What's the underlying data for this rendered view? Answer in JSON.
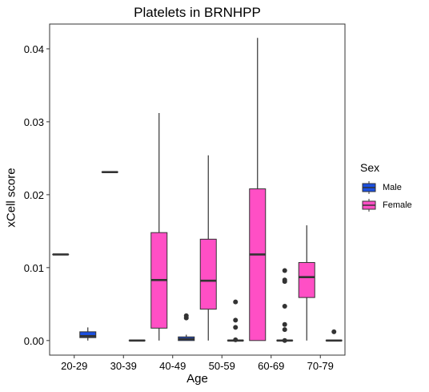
{
  "chart_data": {
    "type": "box",
    "title": "Platelets in BRNHPP",
    "xlabel": "Age",
    "ylabel": "xCell score",
    "categories": [
      "20-29",
      "30-39",
      "40-49",
      "50-59",
      "60-69",
      "70-79"
    ],
    "ylim": [
      -0.002,
      0.0434
    ],
    "yticks": [
      0.0,
      0.01,
      0.02,
      0.03,
      0.04
    ],
    "ytick_labels": [
      "0.00",
      "0.01",
      "0.02",
      "0.03",
      "0.04"
    ],
    "grid": false,
    "legend": {
      "title": "Sex",
      "placement": "right",
      "entries": [
        "Male",
        "Female"
      ]
    },
    "series": [
      {
        "name": "Female",
        "color": "#FF4FC5",
        "boxes": [
          {
            "category": "20-29",
            "min": 0.0118,
            "q1": 0.0118,
            "median": 0.0118,
            "q3": 0.0118,
            "max": 0.0118,
            "outliers": []
          },
          {
            "category": "30-39",
            "min": 0.0231,
            "q1": 0.0231,
            "median": 0.0231,
            "q3": 0.0231,
            "max": 0.0231,
            "outliers": []
          },
          {
            "category": "40-49",
            "min": 0.0,
            "q1": 0.0017,
            "median": 0.0083,
            "q3": 0.0148,
            "max": 0.0312,
            "outliers": []
          },
          {
            "category": "50-59",
            "min": 0.0,
            "q1": 0.0043,
            "median": 0.0082,
            "q3": 0.0139,
            "max": 0.0254,
            "outliers": []
          },
          {
            "category": "60-69",
            "min": 0.0,
            "q1": 0.0,
            "median": 0.0118,
            "q3": 0.0208,
            "max": 0.0415,
            "outliers": []
          },
          {
            "category": "70-79",
            "min": 0.0,
            "q1": 0.0059,
            "median": 0.0087,
            "q3": 0.0107,
            "max": 0.0158,
            "outliers": []
          }
        ]
      },
      {
        "name": "Male",
        "color": "#1B4FE0",
        "boxes": [
          {
            "category": "20-29",
            "min": 0.0,
            "q1": 0.0004,
            "median": 0.0006,
            "q3": 0.0012,
            "max": 0.0018,
            "outliers": []
          },
          {
            "category": "30-39",
            "min": 0.0,
            "q1": 0.0,
            "median": 0.0,
            "q3": 0.0,
            "max": 0.0,
            "outliers": []
          },
          {
            "category": "40-49",
            "min": 0.0,
            "q1": 0.0,
            "median": 0.0002,
            "q3": 0.0005,
            "max": 0.0008,
            "outliers": [
              0.0031,
              0.0034
            ]
          },
          {
            "category": "50-59",
            "min": 0.0,
            "q1": 0.0,
            "median": 0.0,
            "q3": 0.0,
            "max": 0.0,
            "outliers": [
              0.0001,
              0.0018,
              0.0028,
              0.0053
            ]
          },
          {
            "category": "60-69",
            "min": 0.0,
            "q1": 0.0,
            "median": 0.0,
            "q3": 0.0,
            "max": 0.0,
            "outliers": [
              0.0,
              0.0015,
              0.0022,
              0.0047,
              0.0081,
              0.0083,
              0.0096
            ]
          },
          {
            "category": "70-79",
            "min": 0.0,
            "q1": 0.0,
            "median": 0.0,
            "q3": 0.0,
            "max": 0.0,
            "outliers": [
              0.0012
            ]
          }
        ]
      }
    ]
  }
}
